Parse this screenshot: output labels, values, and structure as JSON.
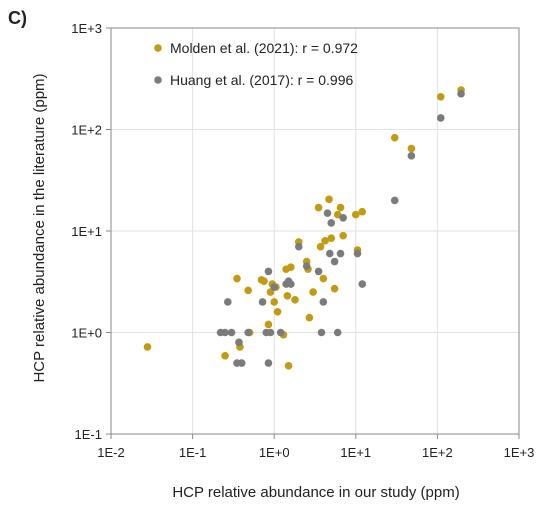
{
  "chart_data": {
    "type": "scatter",
    "panel_label": "C)",
    "title": "",
    "xlabel": "HCP relative abundance in our study (ppm)",
    "ylabel": "HCP relative abundance in the literature (ppm)",
    "x_scale": "log",
    "y_scale": "log",
    "xlim": [
      0.01,
      1000
    ],
    "ylim": [
      0.1,
      1000
    ],
    "x_ticks": [
      0.01,
      0.1,
      1,
      10,
      100,
      1000
    ],
    "y_ticks": [
      0.1,
      1,
      10,
      100,
      1000
    ],
    "x_tick_labels": [
      "1E-2",
      "1E-1",
      "1E+0",
      "1E+1",
      "1E+2",
      "1E+3"
    ],
    "y_tick_labels": [
      "1E-1",
      "1E+0",
      "1E+1",
      "1E+2",
      "1E+3"
    ],
    "grid": true,
    "legend_position": "top-left",
    "series": [
      {
        "name": "Molden et al. (2021): r = 0.972",
        "color": "#c29b12",
        "points": [
          [
            0.028,
            0.72
          ],
          [
            0.25,
            0.59
          ],
          [
            0.35,
            3.4
          ],
          [
            0.38,
            0.72
          ],
          [
            0.48,
            2.6
          ],
          [
            0.5,
            1.0
          ],
          [
            0.7,
            3.3
          ],
          [
            0.75,
            3.2
          ],
          [
            0.85,
            1.2
          ],
          [
            0.9,
            2.5
          ],
          [
            0.95,
            3.0
          ],
          [
            1.0,
            2.0
          ],
          [
            1.05,
            2.8
          ],
          [
            1.1,
            1.6
          ],
          [
            1.3,
            0.95
          ],
          [
            1.4,
            4.2
          ],
          [
            1.45,
            2.3
          ],
          [
            1.5,
            0.47
          ],
          [
            1.6,
            4.4
          ],
          [
            1.8,
            2.1
          ],
          [
            2.0,
            7.8
          ],
          [
            2.5,
            5.0
          ],
          [
            2.6,
            4.2
          ],
          [
            2.7,
            1.4
          ],
          [
            3.0,
            2.5
          ],
          [
            3.5,
            17
          ],
          [
            3.7,
            7.0
          ],
          [
            4.0,
            3.4
          ],
          [
            4.2,
            8.0
          ],
          [
            4.7,
            20.5
          ],
          [
            5.0,
            8.5
          ],
          [
            5.5,
            2.7
          ],
          [
            6.0,
            14.5
          ],
          [
            6.5,
            17
          ],
          [
            7.0,
            9.0
          ],
          [
            10,
            14.5
          ],
          [
            10.5,
            6.5
          ],
          [
            12,
            15.5
          ],
          [
            30,
            83
          ],
          [
            48,
            65
          ],
          [
            110,
            210
          ],
          [
            195,
            245
          ]
        ]
      },
      {
        "name": "Huang et al. (2017): r = 0.996",
        "color": "#7b7b7b",
        "points": [
          [
            0.22,
            1.0
          ],
          [
            0.25,
            1.0
          ],
          [
            0.27,
            2.0
          ],
          [
            0.3,
            1.0
          ],
          [
            0.35,
            0.5
          ],
          [
            0.37,
            0.8
          ],
          [
            0.4,
            0.5
          ],
          [
            0.48,
            1.0
          ],
          [
            0.72,
            2.0
          ],
          [
            0.8,
            1.0
          ],
          [
            0.85,
            4.0
          ],
          [
            0.85,
            0.5
          ],
          [
            0.9,
            1.0
          ],
          [
            1.0,
            2.8
          ],
          [
            1.2,
            1.0
          ],
          [
            1.4,
            3.0
          ],
          [
            1.5,
            3.2
          ],
          [
            1.6,
            3.0
          ],
          [
            2.0,
            7.0
          ],
          [
            2.5,
            4.5
          ],
          [
            3.5,
            4.0
          ],
          [
            3.8,
            1.0
          ],
          [
            4.0,
            2.0
          ],
          [
            4.5,
            15.0
          ],
          [
            4.8,
            6.0
          ],
          [
            5.0,
            12.0
          ],
          [
            5.5,
            5.0
          ],
          [
            6.0,
            1.0
          ],
          [
            6.5,
            6.0
          ],
          [
            7.0,
            13.5
          ],
          [
            10.5,
            6.0
          ],
          [
            12,
            3.0
          ],
          [
            30,
            20
          ],
          [
            48,
            55
          ],
          [
            110,
            130
          ],
          [
            195,
            225
          ]
        ]
      }
    ]
  }
}
